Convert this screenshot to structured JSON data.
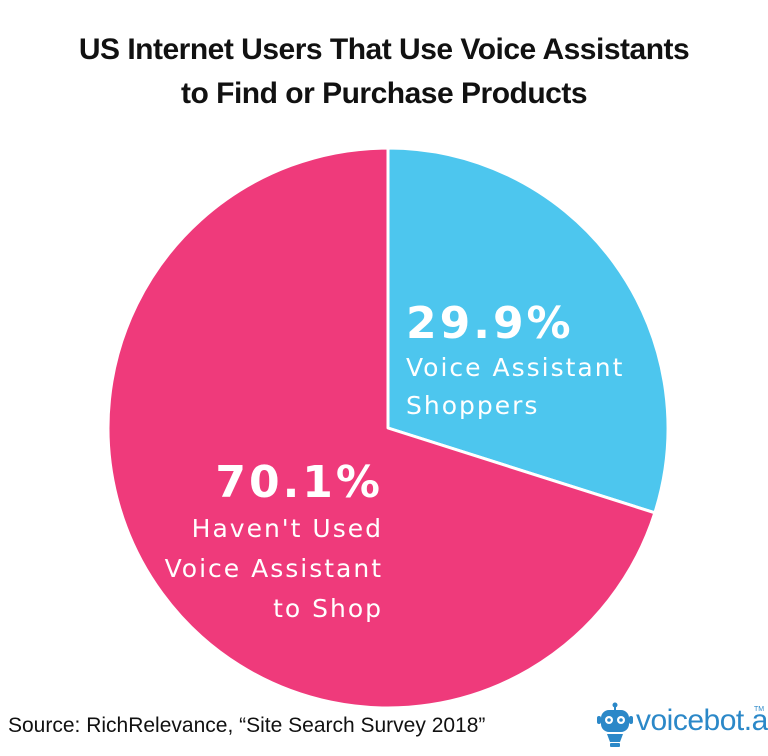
{
  "title": {
    "line1": "US Internet Users That Use Voice Assistants",
    "line2": "to Find or Purchase Products"
  },
  "chart_data": {
    "type": "pie",
    "title": "US Internet Users That Use Voice Assistants to Find or Purchase Products",
    "slices": [
      {
        "label": "Voice Assistant Shoppers",
        "value": 29.9,
        "value_label": "29.9%",
        "label_lines": [
          "Voice Assistant",
          "Shoppers"
        ],
        "color": "#4dc6ee"
      },
      {
        "label": "Haven't Used Voice Assistant to Shop",
        "value": 70.1,
        "value_label": "70.1%",
        "label_lines": [
          "Haven't Used",
          "Voice Assistant",
          "to Shop"
        ],
        "color": "#ef3a7b"
      }
    ],
    "start_angle_deg": 0,
    "direction": "clockwise"
  },
  "source": "Source: RichRelevance, “Site Search Survey 2018”",
  "logo": {
    "text": "voicebot.ai",
    "tm": "TM",
    "color": "#2b88c8",
    "icon": "robot-icon"
  }
}
